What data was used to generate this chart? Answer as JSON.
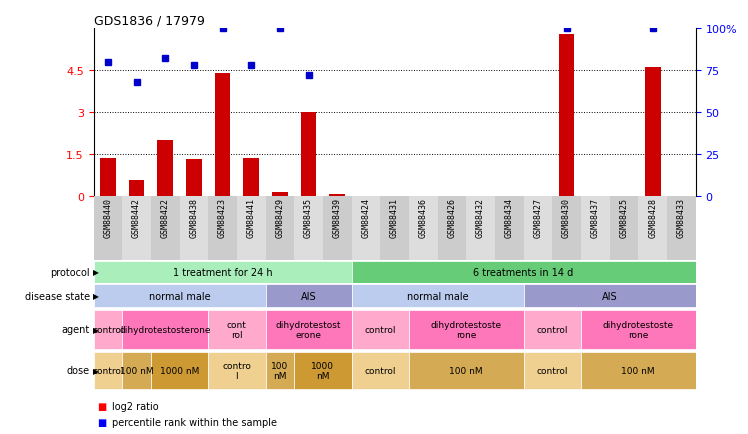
{
  "title": "GDS1836 / 17979",
  "samples": [
    "GSM88440",
    "GSM88442",
    "GSM88422",
    "GSM88438",
    "GSM88423",
    "GSM88441",
    "GSM88429",
    "GSM88435",
    "GSM88439",
    "GSM88424",
    "GSM88431",
    "GSM88436",
    "GSM88426",
    "GSM88432",
    "GSM88434",
    "GSM88427",
    "GSM88430",
    "GSM88437",
    "GSM88425",
    "GSM88428",
    "GSM88433"
  ],
  "log2_ratio": [
    1.35,
    0.55,
    2.0,
    1.3,
    4.4,
    1.35,
    0.12,
    3.0,
    0.05,
    0.0,
    0.0,
    0.0,
    0.0,
    0.0,
    0.0,
    0.0,
    5.8,
    0.0,
    0.0,
    4.6,
    0.0
  ],
  "percentile": [
    80,
    68,
    82,
    78,
    100,
    78,
    100,
    72,
    0,
    0,
    0,
    0,
    0,
    0,
    0,
    0,
    100,
    0,
    0,
    100,
    0
  ],
  "percentile_show": [
    true,
    true,
    true,
    true,
    true,
    true,
    true,
    true,
    false,
    false,
    false,
    false,
    false,
    false,
    false,
    false,
    true,
    false,
    false,
    true,
    false
  ],
  "protocol_groups": [
    {
      "label": "1 treatment for 24 h",
      "start": 0,
      "end": 8,
      "color": "#aaeebb"
    },
    {
      "label": "6 treatments in 14 d",
      "start": 9,
      "end": 20,
      "color": "#66cc77"
    }
  ],
  "disease_groups": [
    {
      "label": "normal male",
      "start": 0,
      "end": 5,
      "color": "#bbccee"
    },
    {
      "label": "AIS",
      "start": 6,
      "end": 8,
      "color": "#9999cc"
    },
    {
      "label": "normal male",
      "start": 9,
      "end": 14,
      "color": "#bbccee"
    },
    {
      "label": "AIS",
      "start": 15,
      "end": 20,
      "color": "#9999cc"
    }
  ],
  "agent_groups": [
    {
      "label": "control",
      "start": 0,
      "end": 0,
      "color": "#ffaacc"
    },
    {
      "label": "dihydrotestosterone",
      "start": 1,
      "end": 3,
      "color": "#ff77bb"
    },
    {
      "label": "cont\nrol",
      "start": 4,
      "end": 5,
      "color": "#ffaacc"
    },
    {
      "label": "dihydrotestost\nerone",
      "start": 6,
      "end": 8,
      "color": "#ff77bb"
    },
    {
      "label": "control",
      "start": 9,
      "end": 10,
      "color": "#ffaacc"
    },
    {
      "label": "dihydrotestoste\nrone",
      "start": 11,
      "end": 14,
      "color": "#ff77bb"
    },
    {
      "label": "control",
      "start": 15,
      "end": 16,
      "color": "#ffaacc"
    },
    {
      "label": "dihydrotestoste\nrone",
      "start": 17,
      "end": 20,
      "color": "#ff77bb"
    }
  ],
  "dose_groups": [
    {
      "label": "control",
      "start": 0,
      "end": 0,
      "color": "#f0d090"
    },
    {
      "label": "100 nM",
      "start": 1,
      "end": 1,
      "color": "#d4aa55"
    },
    {
      "label": "1000 nM",
      "start": 2,
      "end": 3,
      "color": "#cc9933"
    },
    {
      "label": "contro\nl",
      "start": 4,
      "end": 5,
      "color": "#f0d090"
    },
    {
      "label": "100\nnM",
      "start": 6,
      "end": 6,
      "color": "#d4aa55"
    },
    {
      "label": "1000\nnM",
      "start": 7,
      "end": 8,
      "color": "#cc9933"
    },
    {
      "label": "control",
      "start": 9,
      "end": 10,
      "color": "#f0d090"
    },
    {
      "label": "100 nM",
      "start": 11,
      "end": 14,
      "color": "#d4aa55"
    },
    {
      "label": "control",
      "start": 15,
      "end": 16,
      "color": "#f0d090"
    },
    {
      "label": "100 nM",
      "start": 17,
      "end": 20,
      "color": "#d4aa55"
    }
  ],
  "bar_color": "#cc0000",
  "dot_color": "#0000cc",
  "ylim_left": [
    0,
    6
  ],
  "ylim_right": [
    0,
    100
  ],
  "yticks_left": [
    0,
    1.5,
    3.0,
    4.5
  ],
  "yticks_right": [
    0,
    25,
    50,
    75,
    100
  ],
  "ytick_labels_left": [
    "0",
    "1.5",
    "3",
    "4.5"
  ],
  "ytick_labels_right": [
    "0",
    "25",
    "50",
    "75",
    "100%"
  ]
}
